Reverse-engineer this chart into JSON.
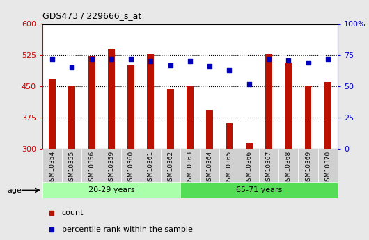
{
  "title": "GDS473 / 229666_s_at",
  "samples": [
    "GSM10354",
    "GSM10355",
    "GSM10356",
    "GSM10359",
    "GSM10360",
    "GSM10361",
    "GSM10362",
    "GSM10363",
    "GSM10364",
    "GSM10365",
    "GSM10366",
    "GSM10367",
    "GSM10368",
    "GSM10369",
    "GSM10370"
  ],
  "counts": [
    468,
    451,
    522,
    540,
    500,
    527,
    443,
    451,
    393,
    362,
    313,
    527,
    508,
    450,
    460
  ],
  "percentile_ranks": [
    72,
    65,
    72,
    72,
    72,
    70,
    67,
    70,
    66,
    63,
    52,
    72,
    71,
    69,
    72
  ],
  "groups": [
    {
      "label": "20-29 years",
      "start": 0,
      "end": 7,
      "color": "#aaffaa"
    },
    {
      "label": "65-71 years",
      "start": 7,
      "end": 15,
      "color": "#55dd55"
    }
  ],
  "bar_color": "#BB1100",
  "dot_color": "#0000BB",
  "ylim_left": [
    300,
    600
  ],
  "ylim_right": [
    0,
    100
  ],
  "yticks_left": [
    300,
    375,
    450,
    525,
    600
  ],
  "yticks_right": [
    0,
    25,
    50,
    75,
    100
  ],
  "left_axis_color": "#CC0000",
  "right_axis_color": "#0000CC",
  "fig_bg_color": "#e8e8e8",
  "plot_bg_color": "#ffffff",
  "tick_bg_color": "#d0d0d0",
  "age_label": "age",
  "legend_count_label": "count",
  "legend_pct_label": "percentile rank within the sample",
  "bar_bottom": 300,
  "bar_width": 0.35
}
